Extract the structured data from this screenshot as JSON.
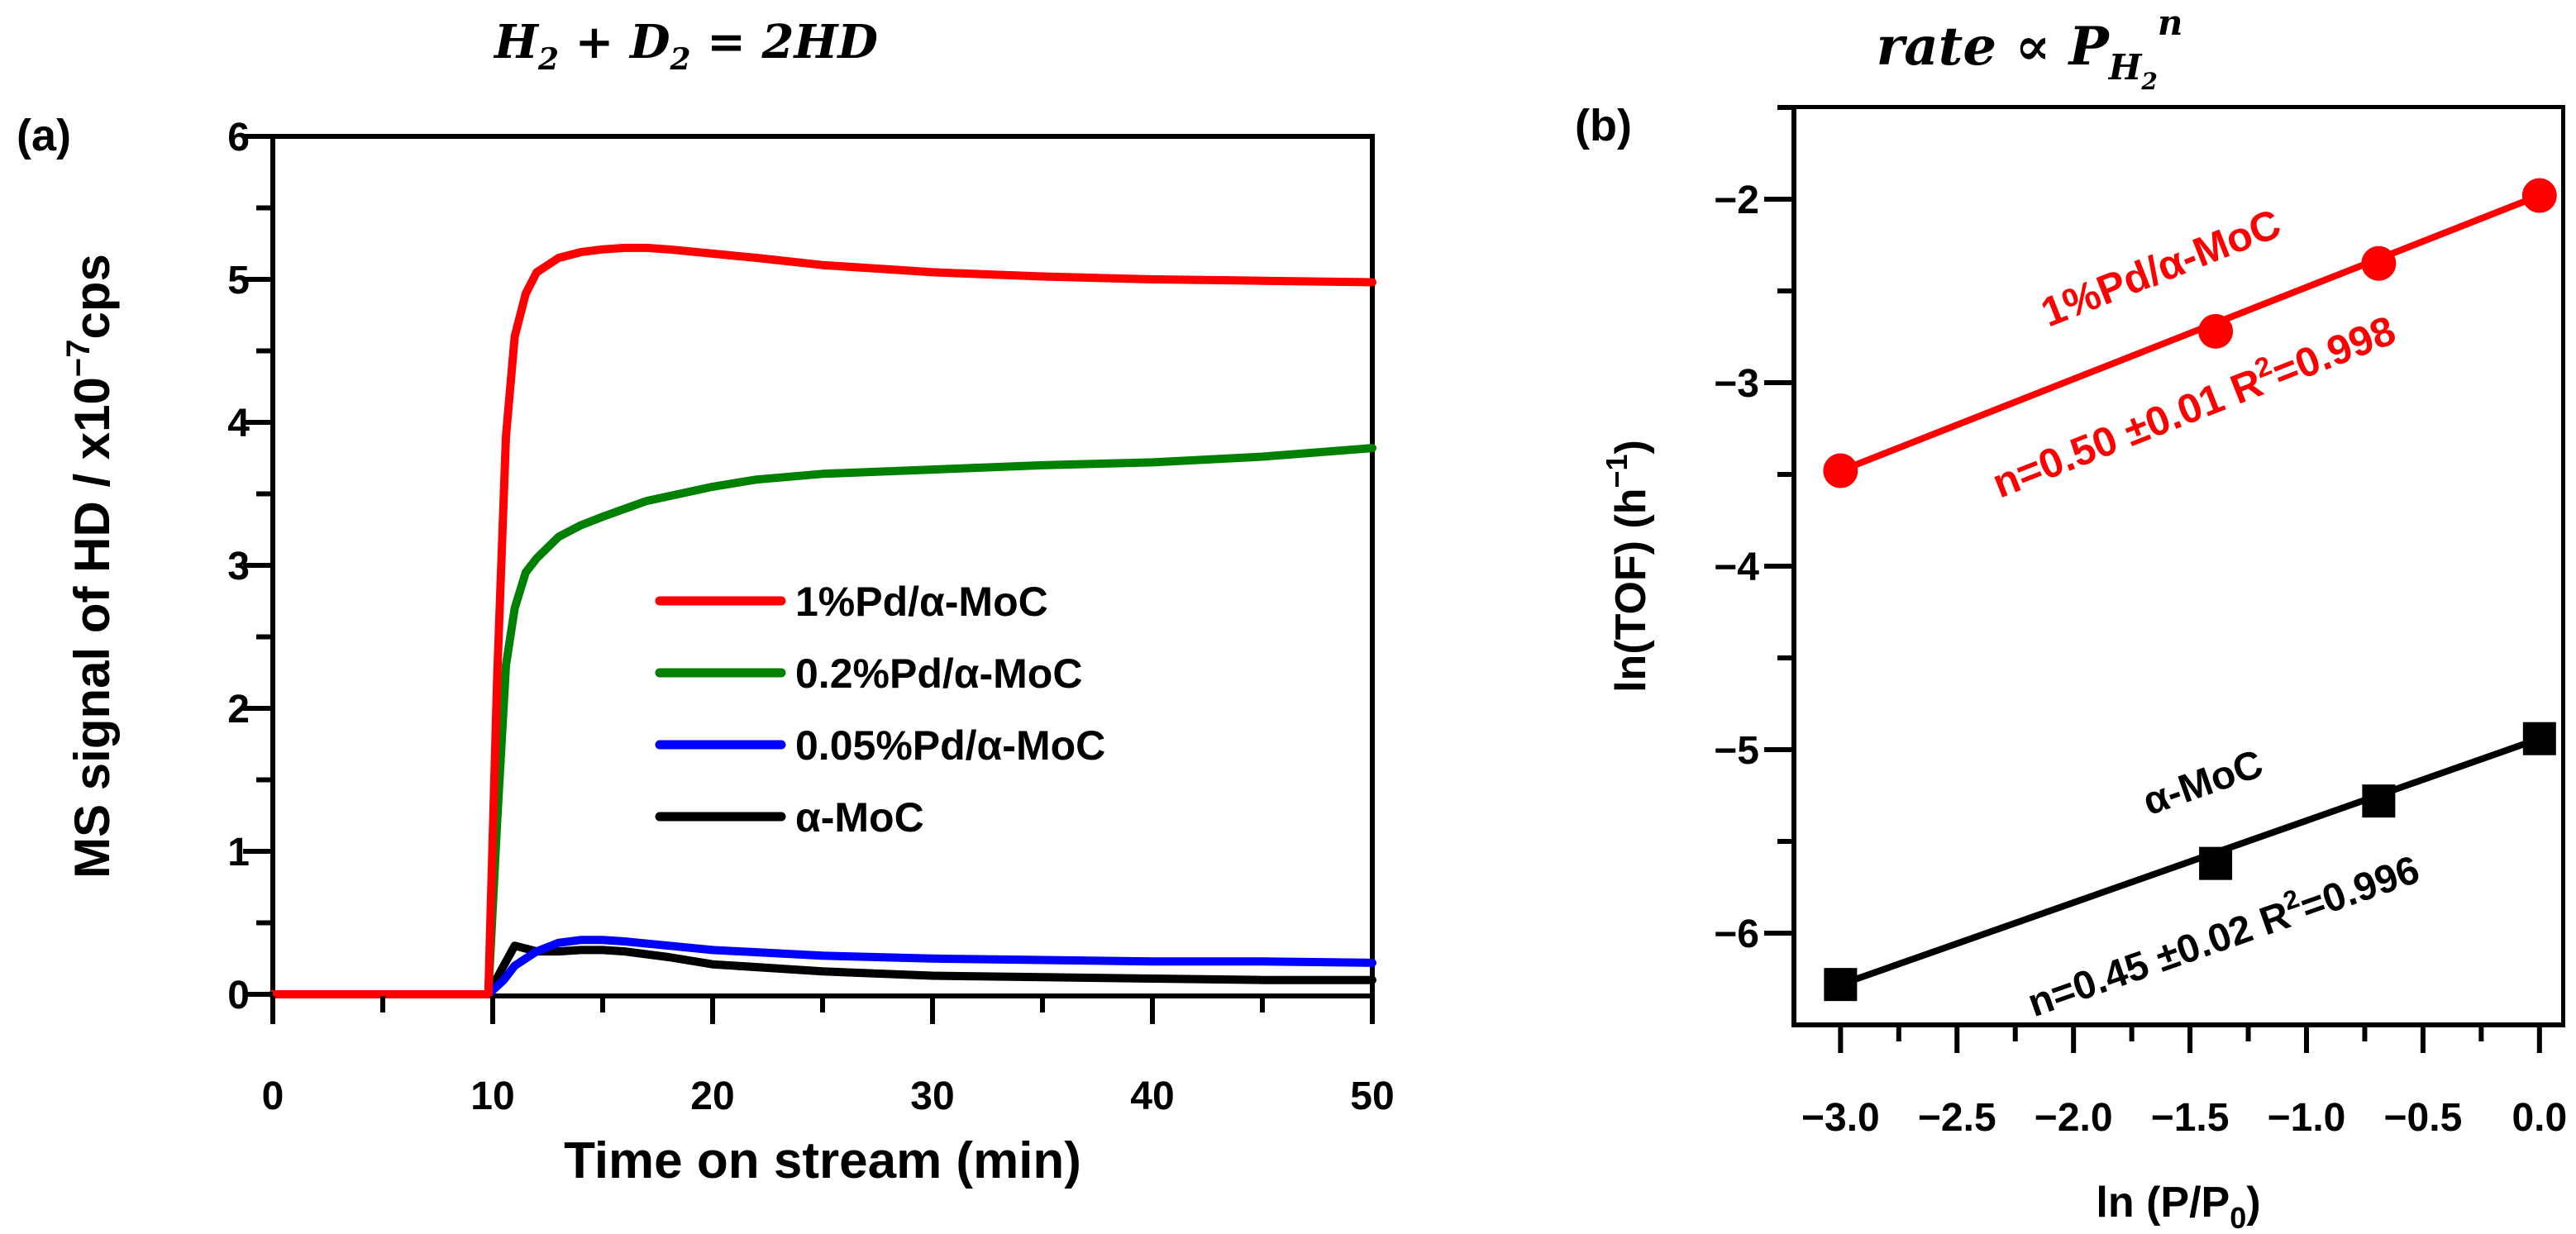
{
  "chart_data": [
    {
      "type": "line",
      "panel_label": "(a)",
      "title": {
        "parts": [
          "H",
          "2",
          " + D",
          "2",
          " = 2HD"
        ]
      },
      "xlabel": "Time on stream  (min)",
      "ylabel": {
        "prefix": "MS signal of HD / x10",
        "sup": "−7",
        "suffix": "cps"
      },
      "xlim": [
        0,
        50
      ],
      "ylim": [
        0,
        6
      ],
      "xticks": [
        0,
        10,
        20,
        30,
        40,
        50
      ],
      "yticks": [
        0,
        1,
        2,
        3,
        4,
        5,
        6
      ],
      "tick_labels_x": [
        "0",
        "10",
        "20",
        "30",
        "40",
        "50"
      ],
      "tick_labels_y": [
        "0",
        "1",
        "2",
        "3",
        "4",
        "5",
        "6"
      ],
      "legend_position": "center-right",
      "series": [
        {
          "name": "1%Pd/α-MoC",
          "color": "#ff0000",
          "x": [
            0,
            9.8,
            10.2,
            10.6,
            11,
            11.5,
            12,
            13,
            14,
            15,
            16,
            17,
            18,
            20,
            22,
            25,
            28,
            30,
            35,
            40,
            45,
            50
          ],
          "y": [
            0,
            0,
            2.2,
            3.9,
            4.6,
            4.9,
            5.05,
            5.15,
            5.19,
            5.21,
            5.22,
            5.22,
            5.21,
            5.18,
            5.15,
            5.1,
            5.07,
            5.05,
            5.02,
            5.0,
            4.99,
            4.98
          ]
        },
        {
          "name": "0.2%Pd/α-MoC",
          "color": "#008000",
          "x": [
            0,
            9.8,
            10.2,
            10.6,
            11,
            11.5,
            12,
            13,
            14,
            15,
            17,
            20,
            22,
            25,
            30,
            35,
            40,
            45,
            50
          ],
          "y": [
            0,
            0,
            1.2,
            2.3,
            2.7,
            2.95,
            3.05,
            3.2,
            3.28,
            3.34,
            3.45,
            3.55,
            3.6,
            3.64,
            3.67,
            3.7,
            3.72,
            3.76,
            3.82
          ]
        },
        {
          "name": "0.05%Pd/α-MoC",
          "color": "#0000ff",
          "x": [
            0,
            9.8,
            10.5,
            11,
            12,
            13,
            14,
            15,
            16,
            18,
            20,
            25,
            30,
            35,
            40,
            45,
            50
          ],
          "y": [
            0,
            0,
            0.1,
            0.2,
            0.3,
            0.36,
            0.38,
            0.38,
            0.37,
            0.34,
            0.31,
            0.27,
            0.25,
            0.24,
            0.23,
            0.23,
            0.22
          ]
        },
        {
          "name": "α-MoC",
          "color": "#000000",
          "x": [
            0,
            9.8,
            10.5,
            11,
            11.5,
            12,
            13,
            14,
            15,
            16,
            18,
            20,
            25,
            30,
            35,
            40,
            45,
            50
          ],
          "y": [
            0,
            0,
            0.2,
            0.34,
            0.32,
            0.3,
            0.3,
            0.31,
            0.31,
            0.3,
            0.26,
            0.21,
            0.16,
            0.13,
            0.12,
            0.11,
            0.1,
            0.1
          ]
        }
      ]
    },
    {
      "type": "scatter",
      "panel_label": "(b)",
      "title": {
        "base": "rate ∝ P",
        "sub": "H",
        "subsub": "2",
        "sup": "n"
      },
      "xlabel": {
        "prefix": "ln (P/P",
        "sub": "0",
        "suffix": ")"
      },
      "ylabel": {
        "prefix": "ln(TOF) (h",
        "sup": "−1",
        "suffix": ")"
      },
      "xlim": [
        -3.2,
        0.1
      ],
      "ylim": [
        -6.5,
        -1.5
      ],
      "xticks": [
        -3.0,
        -2.5,
        -2.0,
        -1.5,
        -1.0,
        -0.5,
        0.0
      ],
      "yticks": [
        -6,
        -5,
        -4,
        -3,
        -2
      ],
      "tick_labels_x": [
        "−3.0",
        "−2.5",
        "−2.0",
        "−1.5",
        "−1.0",
        "−0.5",
        "0.0"
      ],
      "tick_labels_y": [
        "−6",
        "−5",
        "−4",
        "−3",
        "−2"
      ],
      "series": [
        {
          "name": "1%Pd/α-MoC",
          "color": "#ff0000",
          "marker": "circle",
          "x": [
            -3.0,
            -1.39,
            -0.69,
            0.0
          ],
          "y": [
            -3.48,
            -2.72,
            -2.35,
            -1.98
          ],
          "fit": {
            "x": [
              -3.0,
              0.0
            ],
            "y": [
              -3.48,
              -1.98
            ]
          },
          "annotation": {
            "label": "1%Pd/α-MoC",
            "fit_text": "n=0.50  ±0.01  R",
            "sup": "2",
            "fit_tail": "=0.998"
          }
        },
        {
          "name": "α-MoC",
          "color": "#000000",
          "marker": "square",
          "x": [
            -3.0,
            -1.39,
            -0.69,
            0.0
          ],
          "y": [
            -6.28,
            -5.62,
            -5.28,
            -4.94
          ],
          "fit": {
            "x": [
              -3.0,
              0.0
            ],
            "y": [
              -6.28,
              -4.94
            ]
          },
          "annotation": {
            "label": "α-MoC",
            "fit_text": "n=0.45  ±0.02  R",
            "sup": "2",
            "fit_tail": "=0.996"
          }
        }
      ]
    }
  ]
}
